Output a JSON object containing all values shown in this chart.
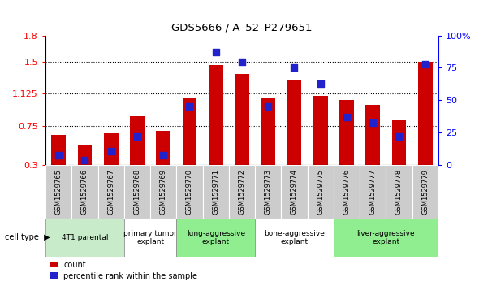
{
  "title": "GDS5666 / A_52_P279651",
  "samples": [
    "GSM1529765",
    "GSM1529766",
    "GSM1529767",
    "GSM1529768",
    "GSM1529769",
    "GSM1529770",
    "GSM1529771",
    "GSM1529772",
    "GSM1529773",
    "GSM1529774",
    "GSM1529775",
    "GSM1529776",
    "GSM1529777",
    "GSM1529778",
    "GSM1529779"
  ],
  "red_values": [
    0.65,
    0.53,
    0.67,
    0.87,
    0.7,
    1.08,
    1.46,
    1.35,
    1.08,
    1.29,
    1.1,
    1.05,
    1.0,
    0.82,
    1.5
  ],
  "blue_pct": [
    8,
    4,
    11,
    22,
    8,
    45,
    87,
    80,
    45,
    75,
    63,
    37,
    33,
    22,
    78
  ],
  "cell_type_groups": [
    {
      "label": "4T1 parental",
      "start": 0,
      "end": 2,
      "color": "#c8ecc9"
    },
    {
      "label": "primary tumor\nexplant",
      "start": 3,
      "end": 4,
      "color": "#ffffff"
    },
    {
      "label": "lung-aggressive\nexplant",
      "start": 5,
      "end": 7,
      "color": "#90ee90"
    },
    {
      "label": "bone-aggressive\nexplant",
      "start": 8,
      "end": 10,
      "color": "#ffffff"
    },
    {
      "label": "liver-aggressive\nexplant",
      "start": 11,
      "end": 14,
      "color": "#90ee90"
    }
  ],
  "ylim_left": [
    0.3,
    1.8
  ],
  "ylim_right": [
    0,
    100
  ],
  "yticks_left": [
    0.3,
    0.75,
    1.125,
    1.5,
    1.8
  ],
  "ytick_labels_left": [
    "0.3",
    "0.75",
    "1.125",
    "1.5",
    "1.8"
  ],
  "yticks_right": [
    0,
    25,
    50,
    75,
    100
  ],
  "ytick_labels_right": [
    "0",
    "25",
    "50",
    "75",
    "100%"
  ],
  "bar_color": "#cc0000",
  "dot_color": "#2222cc",
  "bar_width": 0.55,
  "dot_size": 28
}
